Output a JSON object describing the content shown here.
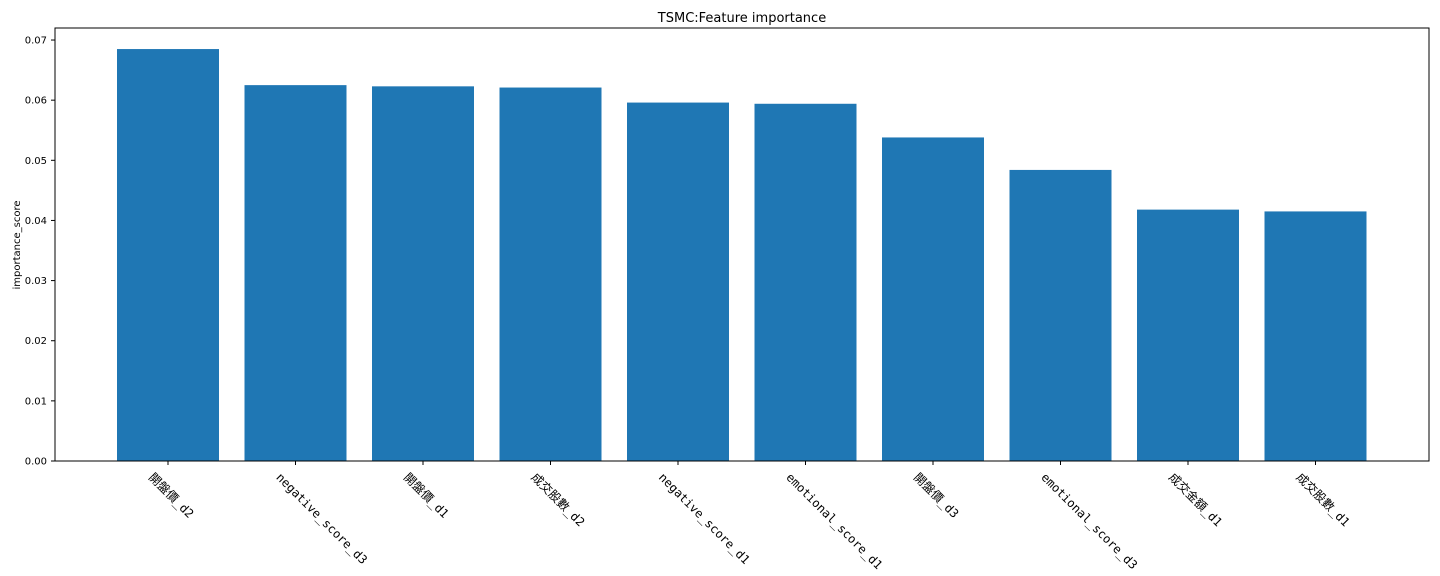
{
  "chart_data": {
    "type": "bar",
    "title": "TSMC:Feature importance",
    "xlabel": "",
    "ylabel": "importance_score",
    "categories": [
      "開盤價_d2",
      "negative_score_d3",
      "開盤價_d1",
      "成交股數_d2",
      "negative_score_d1",
      "emotional_score_d1",
      "開盤價_d3",
      "emotional_score_d3",
      "成交金額_d1",
      "成交股數_d1"
    ],
    "values": [
      0.0685,
      0.0625,
      0.0623,
      0.0621,
      0.0596,
      0.0594,
      0.0538,
      0.0484,
      0.0418,
      0.0415
    ],
    "ylim": [
      0,
      0.072
    ],
    "yticks": [
      "0.00",
      "0.01",
      "0.02",
      "0.03",
      "0.04",
      "0.05",
      "0.06",
      "0.07"
    ],
    "bar_color": "#1f77b4",
    "grid": false
  }
}
